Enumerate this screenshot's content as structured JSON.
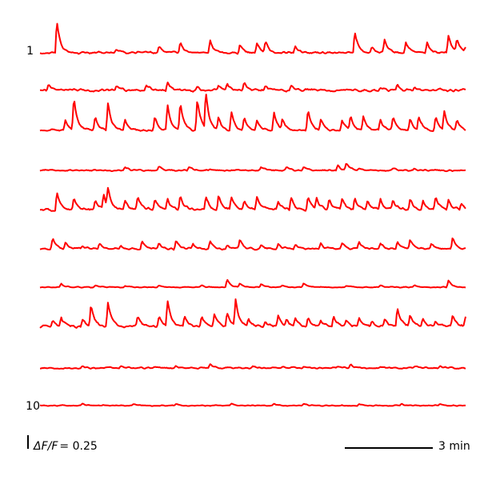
{
  "chart_data": {
    "type": "line",
    "title": "",
    "xlabel": "",
    "ylabel": "",
    "trace_color": "#ff0000",
    "trace_labels": [
      {
        "trace_index": 0,
        "text": "1"
      },
      {
        "trace_index": 9,
        "text": "10"
      }
    ],
    "scale_bars": {
      "amplitude": {
        "quantity": "ΔF/F",
        "value": "= 0.25"
      },
      "time": {
        "label": "3 min"
      }
    },
    "series": [
      {
        "peaks": [
          [
            0.04,
            0.9
          ],
          [
            0.18,
            0.1
          ],
          [
            0.23,
            0.05
          ],
          [
            0.28,
            0.2
          ],
          [
            0.33,
            0.3
          ],
          [
            0.4,
            0.35
          ],
          [
            0.47,
            0.25
          ],
          [
            0.51,
            0.3
          ],
          [
            0.53,
            0.3
          ],
          [
            0.6,
            0.2
          ],
          [
            0.74,
            0.6
          ],
          [
            0.78,
            0.15
          ],
          [
            0.81,
            0.35
          ],
          [
            0.86,
            0.3
          ],
          [
            0.91,
            0.3
          ],
          [
            0.96,
            0.5
          ],
          [
            0.98,
            0.35
          ],
          [
            1.0,
            0.15
          ]
        ],
        "noise": 0.04
      },
      {
        "peaks": [
          [
            0.02,
            0.15
          ],
          [
            0.08,
            0.05
          ],
          [
            0.18,
            0.15
          ],
          [
            0.25,
            0.15
          ],
          [
            0.3,
            0.25
          ],
          [
            0.37,
            0.1
          ],
          [
            0.42,
            0.15
          ],
          [
            0.44,
            0.2
          ],
          [
            0.48,
            0.2
          ],
          [
            0.53,
            0.15
          ],
          [
            0.59,
            0.15
          ],
          [
            0.63,
            0.05
          ],
          [
            0.72,
            0.05
          ],
          [
            0.8,
            0.1
          ],
          [
            0.84,
            0.15
          ],
          [
            0.88,
            0.1
          ],
          [
            0.94,
            0.05
          ]
        ],
        "noise": 0.05
      },
      {
        "peaks": [
          [
            0.06,
            0.3
          ],
          [
            0.08,
            0.9
          ],
          [
            0.13,
            0.4
          ],
          [
            0.16,
            0.8
          ],
          [
            0.2,
            0.3
          ],
          [
            0.27,
            0.4
          ],
          [
            0.3,
            0.7
          ],
          [
            0.33,
            0.8
          ],
          [
            0.37,
            0.9
          ],
          [
            0.39,
            1.0
          ],
          [
            0.42,
            0.35
          ],
          [
            0.45,
            0.5
          ],
          [
            0.48,
            0.35
          ],
          [
            0.51,
            0.3
          ],
          [
            0.55,
            0.5
          ],
          [
            0.57,
            0.3
          ],
          [
            0.63,
            0.6
          ],
          [
            0.66,
            0.3
          ],
          [
            0.71,
            0.3
          ],
          [
            0.73,
            0.4
          ],
          [
            0.76,
            0.4
          ],
          [
            0.8,
            0.3
          ],
          [
            0.83,
            0.35
          ],
          [
            0.87,
            0.3
          ],
          [
            0.89,
            0.4
          ],
          [
            0.93,
            0.4
          ],
          [
            0.95,
            0.5
          ],
          [
            0.98,
            0.3
          ]
        ],
        "noise": 0.04
      },
      {
        "peaks": [
          [
            0.2,
            0.1
          ],
          [
            0.28,
            0.1
          ],
          [
            0.35,
            0.1
          ],
          [
            0.4,
            0.05
          ],
          [
            0.52,
            0.1
          ],
          [
            0.58,
            0.1
          ],
          [
            0.62,
            0.1
          ],
          [
            0.7,
            0.15
          ],
          [
            0.72,
            0.2
          ],
          [
            0.75,
            0.05
          ],
          [
            0.83,
            0.05
          ],
          [
            0.88,
            0.05
          ]
        ],
        "noise": 0.03
      },
      {
        "peaks": [
          [
            0.04,
            0.5
          ],
          [
            0.08,
            0.35
          ],
          [
            0.13,
            0.25
          ],
          [
            0.15,
            0.4
          ],
          [
            0.16,
            0.5
          ],
          [
            0.2,
            0.25
          ],
          [
            0.23,
            0.35
          ],
          [
            0.27,
            0.3
          ],
          [
            0.3,
            0.3
          ],
          [
            0.33,
            0.4
          ],
          [
            0.39,
            0.35
          ],
          [
            0.42,
            0.45
          ],
          [
            0.45,
            0.35
          ],
          [
            0.48,
            0.25
          ],
          [
            0.51,
            0.35
          ],
          [
            0.56,
            0.25
          ],
          [
            0.59,
            0.35
          ],
          [
            0.63,
            0.4
          ],
          [
            0.65,
            0.3
          ],
          [
            0.68,
            0.3
          ],
          [
            0.71,
            0.3
          ],
          [
            0.74,
            0.35
          ],
          [
            0.77,
            0.25
          ],
          [
            0.8,
            0.3
          ],
          [
            0.83,
            0.25
          ],
          [
            0.87,
            0.3
          ],
          [
            0.9,
            0.25
          ],
          [
            0.93,
            0.35
          ],
          [
            0.96,
            0.3
          ],
          [
            0.99,
            0.2
          ]
        ],
        "noise": 0.05
      },
      {
        "peaks": [
          [
            0.03,
            0.3
          ],
          [
            0.06,
            0.2
          ],
          [
            0.1,
            0.1
          ],
          [
            0.14,
            0.15
          ],
          [
            0.19,
            0.1
          ],
          [
            0.24,
            0.2
          ],
          [
            0.28,
            0.15
          ],
          [
            0.32,
            0.25
          ],
          [
            0.36,
            0.15
          ],
          [
            0.4,
            0.2
          ],
          [
            0.44,
            0.1
          ],
          [
            0.47,
            0.25
          ],
          [
            0.52,
            0.1
          ],
          [
            0.56,
            0.15
          ],
          [
            0.6,
            0.1
          ],
          [
            0.66,
            0.15
          ],
          [
            0.71,
            0.15
          ],
          [
            0.75,
            0.2
          ],
          [
            0.8,
            0.15
          ],
          [
            0.84,
            0.2
          ],
          [
            0.87,
            0.25
          ],
          [
            0.92,
            0.15
          ],
          [
            0.97,
            0.35
          ]
        ],
        "noise": 0.04
      },
      {
        "peaks": [
          [
            0.05,
            0.1
          ],
          [
            0.13,
            0.05
          ],
          [
            0.2,
            0.05
          ],
          [
            0.28,
            0.05
          ],
          [
            0.38,
            0.05
          ],
          [
            0.44,
            0.2
          ],
          [
            0.47,
            0.1
          ],
          [
            0.52,
            0.1
          ],
          [
            0.57,
            0.05
          ],
          [
            0.62,
            0.1
          ],
          [
            0.72,
            0.05
          ],
          [
            0.8,
            0.05
          ],
          [
            0.88,
            0.05
          ],
          [
            0.96,
            0.2
          ]
        ],
        "noise": 0.02
      },
      {
        "peaks": [
          [
            0.03,
            0.2
          ],
          [
            0.05,
            0.25
          ],
          [
            0.1,
            0.2
          ],
          [
            0.12,
            0.6
          ],
          [
            0.16,
            0.7
          ],
          [
            0.23,
            0.3
          ],
          [
            0.28,
            0.3
          ],
          [
            0.3,
            0.7
          ],
          [
            0.34,
            0.3
          ],
          [
            0.38,
            0.3
          ],
          [
            0.41,
            0.35
          ],
          [
            0.44,
            0.35
          ],
          [
            0.46,
            0.75
          ],
          [
            0.49,
            0.2
          ],
          [
            0.53,
            0.15
          ],
          [
            0.56,
            0.3
          ],
          [
            0.58,
            0.15
          ],
          [
            0.6,
            0.2
          ],
          [
            0.63,
            0.25
          ],
          [
            0.66,
            0.2
          ],
          [
            0.69,
            0.3
          ],
          [
            0.72,
            0.15
          ],
          [
            0.75,
            0.25
          ],
          [
            0.78,
            0.15
          ],
          [
            0.81,
            0.2
          ],
          [
            0.84,
            0.5
          ],
          [
            0.87,
            0.3
          ],
          [
            0.9,
            0.2
          ],
          [
            0.93,
            0.15
          ],
          [
            0.97,
            0.3
          ],
          [
            1.0,
            0.25
          ]
        ],
        "noise": 0.05
      },
      {
        "peaks": [
          [
            0.1,
            0.05
          ],
          [
            0.19,
            0.05
          ],
          [
            0.27,
            0.05
          ],
          [
            0.32,
            0.05
          ],
          [
            0.4,
            0.1
          ],
          [
            0.5,
            0.05
          ],
          [
            0.57,
            0.05
          ],
          [
            0.62,
            0.05
          ],
          [
            0.7,
            0.05
          ],
          [
            0.73,
            0.1
          ],
          [
            0.8,
            0.05
          ],
          [
            0.88,
            0.05
          ],
          [
            0.94,
            0.05
          ]
        ],
        "noise": 0.03
      },
      {
        "peaks": [
          [
            0.1,
            0.05
          ],
          [
            0.22,
            0.05
          ],
          [
            0.32,
            0.05
          ],
          [
            0.45,
            0.05
          ],
          [
            0.55,
            0.05
          ],
          [
            0.62,
            0.05
          ],
          [
            0.75,
            0.05
          ],
          [
            0.85,
            0.05
          ],
          [
            0.94,
            0.05
          ]
        ],
        "noise": 0.02
      }
    ]
  }
}
